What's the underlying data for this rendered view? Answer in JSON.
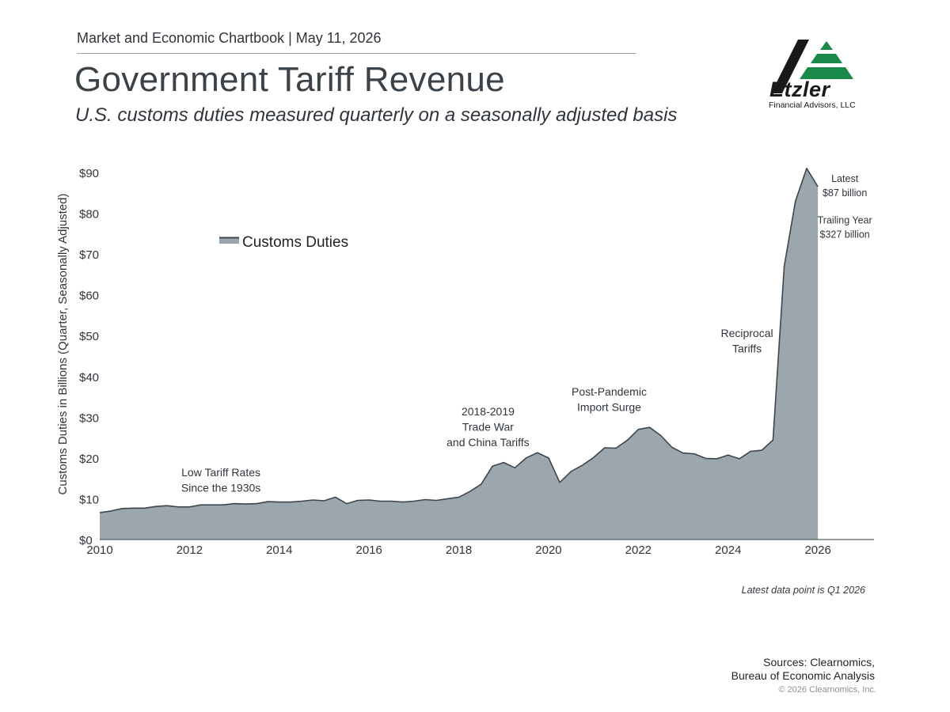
{
  "header": {
    "chartbook": "Market and Economic Chartbook | May 11, 2026",
    "title": "Government Tariff Revenue",
    "subtitle": "U.S. customs duties measured quarterly on a seasonally adjusted basis"
  },
  "logo": {
    "name": "Etzler",
    "tagline": "Financial Advisors, LLC"
  },
  "colors": {
    "area_fill": "#9ca6ad",
    "area_stroke": "#3d464d",
    "axis": "#555c62",
    "logo_green": "#1a8a4a",
    "logo_black": "#1a1a1a"
  },
  "chart_data": {
    "type": "area",
    "ylabel": "Customs Duties in Billions (Quarter, Seasonally Adjusted)",
    "xlim": [
      2010,
      2027.25
    ],
    "ylim": [
      0,
      90
    ],
    "yticks": [
      0,
      10,
      20,
      30,
      40,
      50,
      60,
      70,
      80,
      90
    ],
    "ytick_labels": [
      "$0",
      "$10",
      "$20",
      "$30",
      "$40",
      "$50",
      "$60",
      "$70",
      "$80",
      "$90"
    ],
    "xticks": [
      2010,
      2012,
      2014,
      2016,
      2018,
      2020,
      2022,
      2024,
      2026
    ],
    "xtick_labels": [
      "2010",
      "2012",
      "2014",
      "2016",
      "2018",
      "2020",
      "2022",
      "2024",
      "2026"
    ],
    "legend_position": "top-left",
    "grid": false,
    "series": [
      {
        "name": "Customs Duties",
        "x": [
          2010.0,
          2010.25,
          2010.5,
          2010.75,
          2011.0,
          2011.25,
          2011.5,
          2011.75,
          2012.0,
          2012.25,
          2012.5,
          2012.75,
          2013.0,
          2013.25,
          2013.5,
          2013.75,
          2014.0,
          2014.25,
          2014.5,
          2014.75,
          2015.0,
          2015.25,
          2015.5,
          2015.75,
          2016.0,
          2016.25,
          2016.5,
          2016.75,
          2017.0,
          2017.25,
          2017.5,
          2017.75,
          2018.0,
          2018.25,
          2018.5,
          2018.75,
          2019.0,
          2019.25,
          2019.5,
          2019.75,
          2020.0,
          2020.25,
          2020.5,
          2020.75,
          2021.0,
          2021.25,
          2021.5,
          2021.75,
          2022.0,
          2022.25,
          2022.5,
          2022.75,
          2023.0,
          2023.25,
          2023.5,
          2023.75,
          2024.0,
          2024.25,
          2024.5,
          2024.75,
          2025.0,
          2025.25,
          2025.5,
          2025.75,
          2026.0
        ],
        "values": [
          6.6,
          7.0,
          7.6,
          7.7,
          7.7,
          8.1,
          8.3,
          8.0,
          8.0,
          8.5,
          8.5,
          8.5,
          8.8,
          8.7,
          8.8,
          9.3,
          9.2,
          9.2,
          9.4,
          9.7,
          9.5,
          10.4,
          8.8,
          9.6,
          9.7,
          9.4,
          9.4,
          9.2,
          9.4,
          9.8,
          9.6,
          10.0,
          10.4,
          11.8,
          13.6,
          18.0,
          18.9,
          17.6,
          20.0,
          21.3,
          20.0,
          14.0,
          16.7,
          18.2,
          20.1,
          22.5,
          22.4,
          24.3,
          27.0,
          27.5,
          25.5,
          22.6,
          21.2,
          21.0,
          19.9,
          19.8,
          20.7,
          19.8,
          21.6,
          21.9,
          24.4,
          67.0,
          83.0,
          91.0,
          86.5
        ]
      }
    ],
    "annotations": [
      {
        "lines": [
          "Low Tariff Rates",
          "Since the 1930s"
        ],
        "x": 2012.7,
        "y": 15.5
      },
      {
        "lines": [
          "2018-2019",
          "Trade War",
          "and China Tariffs"
        ],
        "x": 2018.65,
        "y": 30.5
      },
      {
        "lines": [
          "Post-Pandemic",
          "Import Surge"
        ],
        "x": 2021.35,
        "y": 35.3
      },
      {
        "lines": [
          "Reciprocal",
          "Tariffs"
        ],
        "x": 2024.42,
        "y": 49.7
      },
      {
        "lines": [
          "Latest",
          "$87 billion"
        ],
        "x": 2026.6,
        "y": 87.7
      },
      {
        "lines": [
          "Trailing Year",
          "$327 billion"
        ],
        "x": 2026.6,
        "y": 77.5
      }
    ],
    "footnote": "Latest data point is Q1 2026"
  },
  "footer": {
    "sources": [
      "Sources: Clearnomics,",
      "Bureau of Economic Analysis"
    ],
    "copyright": "© 2026 Clearnomics, Inc."
  }
}
